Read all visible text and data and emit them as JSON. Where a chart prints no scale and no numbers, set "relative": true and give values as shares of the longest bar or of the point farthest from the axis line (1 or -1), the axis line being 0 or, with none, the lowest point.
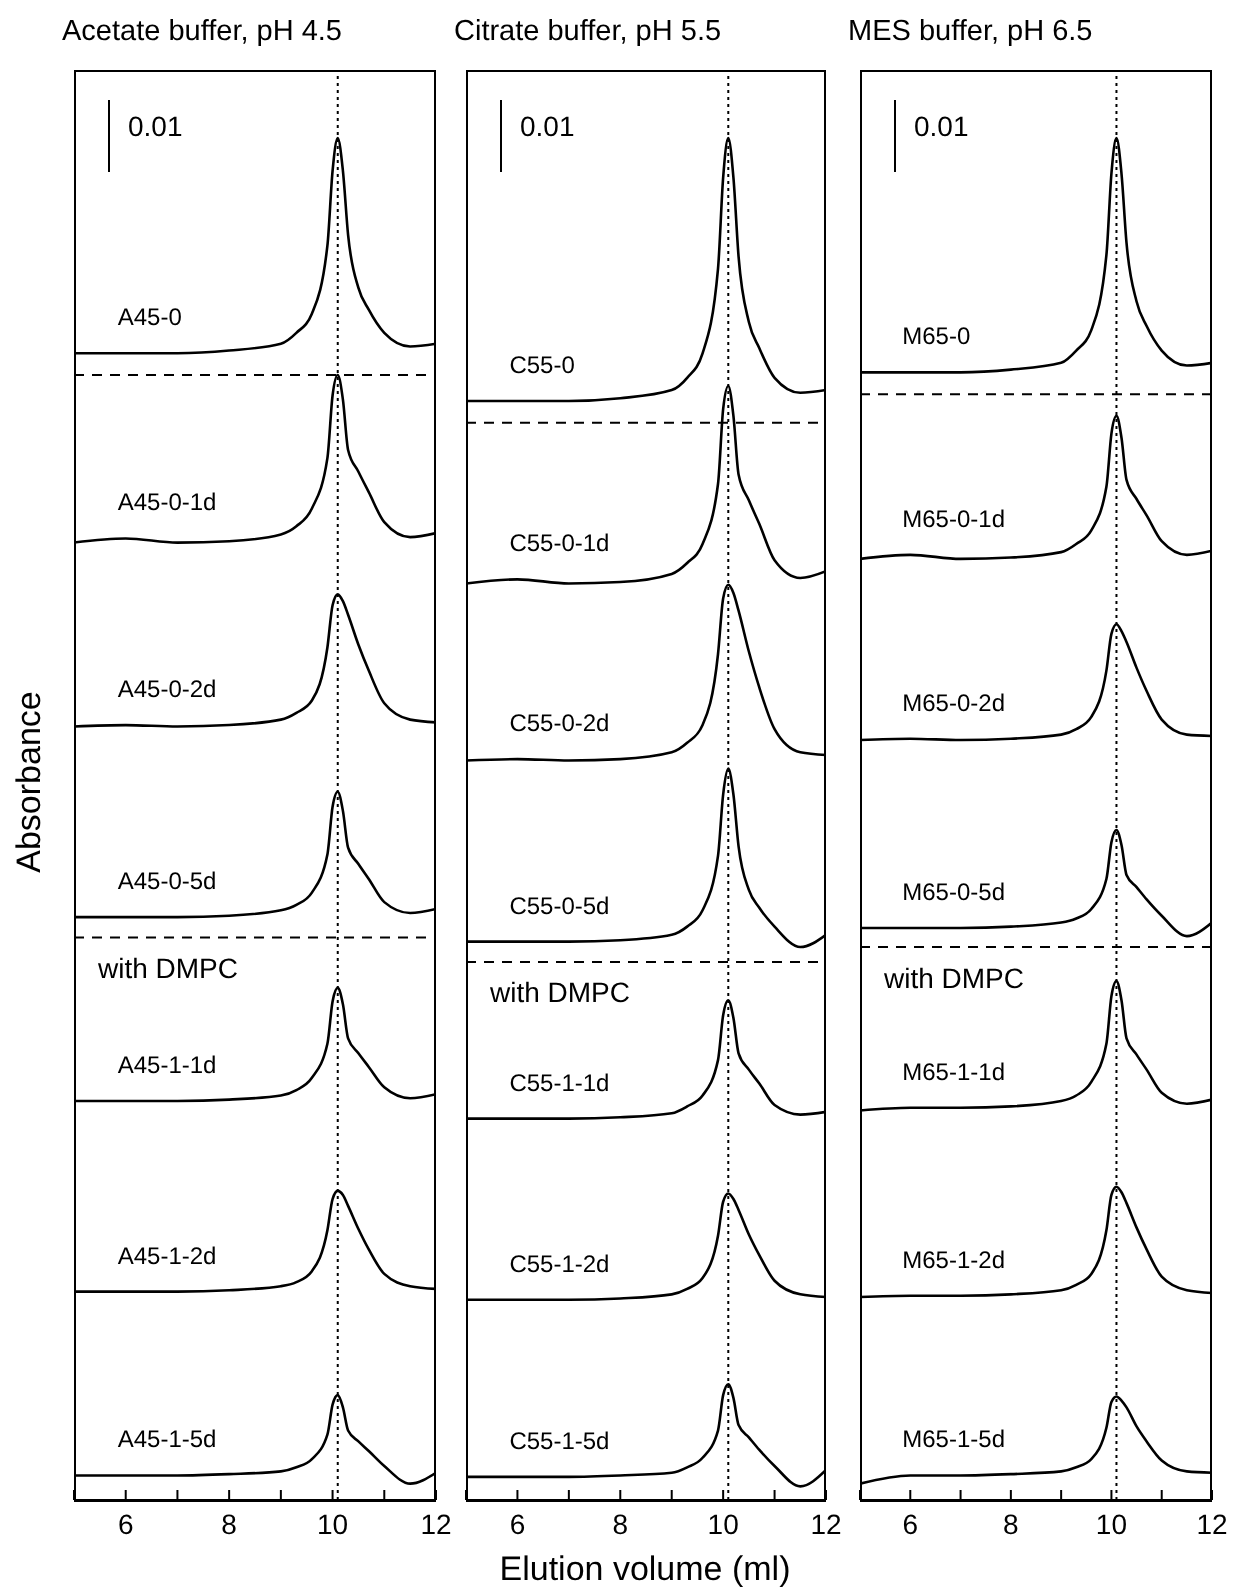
{
  "chart_data": [
    {
      "type": "line",
      "title": "Acetate buffer, pH 4.5",
      "ylabel": "Absorbance",
      "relative": true,
      "xlim": [
        5,
        12
      ],
      "xticks": [
        {
          "value": 5,
          "label": null
        },
        6,
        {
          "value": 7,
          "label": null
        },
        8,
        {
          "value": 9,
          "label": null
        },
        10,
        {
          "value": 11,
          "label": null
        },
        12
      ],
      "tick_labels": "x",
      "x": [
        5,
        6,
        7,
        8,
        9,
        9.3,
        9.6,
        9.9,
        10,
        10.1,
        10.2,
        10.3,
        10.5,
        10.7,
        11,
        11.5,
        12
      ],
      "series": [
        {
          "name": "A45-0",
          "color": "#000000",
          "values": [
            0.842,
            0.842,
            0.842,
            0.844,
            0.849,
            0.857,
            0.871,
            0.921,
            0.976,
            1.0,
            0.976,
            0.929,
            0.89,
            0.874,
            0.857,
            0.847,
            0.849
          ]
        },
        {
          "name": "A45-0-1d",
          "color": "#000000",
          "values": [
            0.703,
            0.706,
            0.703,
            0.704,
            0.709,
            0.715,
            0.728,
            0.765,
            0.811,
            0.826,
            0.808,
            0.771,
            0.755,
            0.74,
            0.718,
            0.707,
            0.71
          ]
        },
        {
          "name": "A45-0-2d",
          "color": "#000000",
          "values": [
            0.568,
            0.569,
            0.568,
            0.569,
            0.573,
            0.578,
            0.587,
            0.626,
            0.657,
            0.665,
            0.66,
            0.65,
            0.628,
            0.609,
            0.585,
            0.573,
            0.571
          ]
        },
        {
          "name": "A45-0-5d",
          "color": "#000000",
          "values": [
            0.428,
            0.428,
            0.428,
            0.429,
            0.433,
            0.437,
            0.446,
            0.474,
            0.509,
            0.52,
            0.506,
            0.479,
            0.467,
            0.456,
            0.439,
            0.431,
            0.434
          ]
        },
        {
          "name": "A45-1-1d",
          "color": "#000000",
          "values": [
            0.293,
            0.293,
            0.293,
            0.294,
            0.297,
            0.301,
            0.31,
            0.335,
            0.366,
            0.376,
            0.364,
            0.339,
            0.328,
            0.318,
            0.303,
            0.295,
            0.298
          ]
        },
        {
          "name": "A45-1-2d",
          "color": "#000000",
          "values": [
            0.153,
            0.153,
            0.153,
            0.154,
            0.157,
            0.16,
            0.168,
            0.198,
            0.221,
            0.227,
            0.224,
            0.216,
            0.199,
            0.184,
            0.166,
            0.157,
            0.155
          ]
        },
        {
          "name": "A45-1-5d",
          "color": "#000000",
          "values": [
            0.018,
            0.018,
            0.018,
            0.019,
            0.021,
            0.024,
            0.03,
            0.048,
            0.07,
            0.077,
            0.068,
            0.051,
            0.043,
            0.036,
            0.025,
            0.012,
            0.02
          ]
        }
      ],
      "ref_lines": [
        {
          "axis": "y",
          "value": 0.826,
          "line_style": "dashed",
          "color": "#000000"
        },
        {
          "axis": "y",
          "value": 0.413,
          "line_style": "dashed",
          "color": "#000000"
        },
        {
          "axis": "x",
          "value": 10.1,
          "line_style": "dotted",
          "color": "#000000"
        }
      ],
      "annotations": [
        "0.01",
        "with DMPC"
      ]
    },
    {
      "type": "line",
      "title": "Citrate buffer, pH 5.5",
      "xlabel": "Elution volume (ml)",
      "relative": true,
      "xlim": [
        5,
        12
      ],
      "xticks": [
        {
          "value": 5,
          "label": null
        },
        6,
        {
          "value": 7,
          "label": null
        },
        8,
        {
          "value": 9,
          "label": null
        },
        10,
        {
          "value": 11,
          "label": null
        },
        12
      ],
      "tick_labels": "x",
      "x": [
        5,
        6,
        7,
        8,
        9,
        9.3,
        9.6,
        9.9,
        10,
        10.1,
        10.2,
        10.3,
        10.5,
        10.7,
        11,
        11.5,
        12
      ],
      "series": [
        {
          "name": "C55-0",
          "color": "#000000",
          "values": [
            0.807,
            0.807,
            0.807,
            0.809,
            0.815,
            0.824,
            0.842,
            0.904,
            0.971,
            1.0,
            0.971,
            0.913,
            0.865,
            0.846,
            0.824,
            0.813,
            0.815
          ]
        },
        {
          "name": "C55-0-1d",
          "color": "#000000",
          "values": [
            0.673,
            0.676,
            0.673,
            0.674,
            0.68,
            0.688,
            0.702,
            0.746,
            0.801,
            0.818,
            0.796,
            0.753,
            0.734,
            0.717,
            0.69,
            0.677,
            0.682
          ]
        },
        {
          "name": "C55-0-2d",
          "color": "#000000",
          "values": [
            0.543,
            0.544,
            0.543,
            0.544,
            0.549,
            0.556,
            0.569,
            0.621,
            0.662,
            0.672,
            0.666,
            0.653,
            0.623,
            0.597,
            0.566,
            0.549,
            0.547
          ]
        },
        {
          "name": "C55-0-5d",
          "color": "#000000",
          "values": [
            0.41,
            0.41,
            0.41,
            0.411,
            0.415,
            0.421,
            0.433,
            0.473,
            0.518,
            0.537,
            0.518,
            0.48,
            0.448,
            0.435,
            0.421,
            0.406,
            0.415
          ]
        },
        {
          "name": "C55-1-1d",
          "color": "#000000",
          "values": [
            0.28,
            0.28,
            0.28,
            0.281,
            0.284,
            0.289,
            0.297,
            0.323,
            0.356,
            0.367,
            0.354,
            0.328,
            0.316,
            0.306,
            0.29,
            0.283,
            0.285
          ]
        },
        {
          "name": "C55-1-2d",
          "color": "#000000",
          "values": [
            0.147,
            0.147,
            0.147,
            0.148,
            0.151,
            0.155,
            0.163,
            0.194,
            0.219,
            0.225,
            0.221,
            0.213,
            0.195,
            0.18,
            0.161,
            0.151,
            0.149
          ]
        },
        {
          "name": "C55-1-5d",
          "color": "#000000",
          "values": [
            0.017,
            0.017,
            0.017,
            0.018,
            0.02,
            0.024,
            0.031,
            0.051,
            0.077,
            0.085,
            0.075,
            0.055,
            0.046,
            0.037,
            0.025,
            0.01,
            0.022
          ]
        }
      ],
      "ref_lines": [
        {
          "axis": "y",
          "value": 0.791,
          "line_style": "dashed",
          "color": "#000000"
        },
        {
          "axis": "y",
          "value": 0.395,
          "line_style": "dashed",
          "color": "#000000"
        },
        {
          "axis": "x",
          "value": 10.1,
          "line_style": "dotted",
          "color": "#000000"
        }
      ],
      "annotations": [
        "0.01",
        "with DMPC"
      ]
    },
    {
      "type": "line",
      "title": "MES buffer, pH 6.5",
      "relative": true,
      "xlim": [
        5,
        12
      ],
      "xticks": [
        {
          "value": 5,
          "label": null
        },
        6,
        {
          "value": 7,
          "label": null
        },
        8,
        {
          "value": 9,
          "label": null
        },
        10,
        {
          "value": 11,
          "label": null
        },
        12
      ],
      "tick_labels": "x",
      "x": [
        5,
        6,
        7,
        8,
        9,
        9.3,
        9.6,
        9.9,
        10,
        10.1,
        10.2,
        10.3,
        10.5,
        10.7,
        11,
        11.5,
        12
      ],
      "series": [
        {
          "name": "M65-0",
          "color": "#000000",
          "values": [
            0.828,
            0.828,
            0.828,
            0.83,
            0.835,
            0.844,
            0.859,
            0.914,
            0.974,
            1.0,
            0.974,
            0.923,
            0.88,
            0.862,
            0.844,
            0.833,
            0.835
          ]
        },
        {
          "name": "M65-0-1d",
          "color": "#000000",
          "values": [
            0.691,
            0.694,
            0.691,
            0.692,
            0.696,
            0.702,
            0.712,
            0.744,
            0.783,
            0.796,
            0.78,
            0.749,
            0.735,
            0.723,
            0.704,
            0.694,
            0.697
          ]
        },
        {
          "name": "M65-0-2d",
          "color": "#000000",
          "values": [
            0.558,
            0.559,
            0.558,
            0.559,
            0.562,
            0.566,
            0.575,
            0.609,
            0.636,
            0.643,
            0.638,
            0.63,
            0.611,
            0.594,
            0.573,
            0.562,
            0.561
          ]
        },
        {
          "name": "M65-0-5d",
          "color": "#000000",
          "values": [
            0.42,
            0.42,
            0.42,
            0.421,
            0.424,
            0.427,
            0.434,
            0.456,
            0.483,
            0.492,
            0.481,
            0.459,
            0.45,
            0.441,
            0.429,
            0.414,
            0.424
          ]
        },
        {
          "name": "M65-1-1d",
          "color": "#000000",
          "values": [
            0.286,
            0.288,
            0.288,
            0.289,
            0.293,
            0.297,
            0.307,
            0.335,
            0.37,
            0.381,
            0.367,
            0.339,
            0.327,
            0.316,
            0.299,
            0.291,
            0.294
          ]
        },
        {
          "name": "M65-1-2d",
          "color": "#000000",
          "values": [
            0.149,
            0.15,
            0.15,
            0.151,
            0.154,
            0.158,
            0.166,
            0.198,
            0.224,
            0.23,
            0.226,
            0.218,
            0.2,
            0.184,
            0.164,
            0.154,
            0.152
          ]
        },
        {
          "name": "M65-1-5d",
          "color": "#000000",
          "values": [
            0.012,
            0.018,
            0.018,
            0.019,
            0.021,
            0.024,
            0.03,
            0.053,
            0.072,
            0.076,
            0.073,
            0.068,
            0.054,
            0.043,
            0.029,
            0.021,
            0.02
          ]
        }
      ],
      "ref_lines": [
        {
          "axis": "y",
          "value": 0.812,
          "line_style": "dashed",
          "color": "#000000"
        },
        {
          "axis": "y",
          "value": 0.406,
          "line_style": "dashed",
          "color": "#000000"
        },
        {
          "axis": "x",
          "value": 10.1,
          "line_style": "dotted",
          "color": "#000000"
        }
      ],
      "annotations": [
        "0.01",
        "with DMPC"
      ]
    }
  ]
}
